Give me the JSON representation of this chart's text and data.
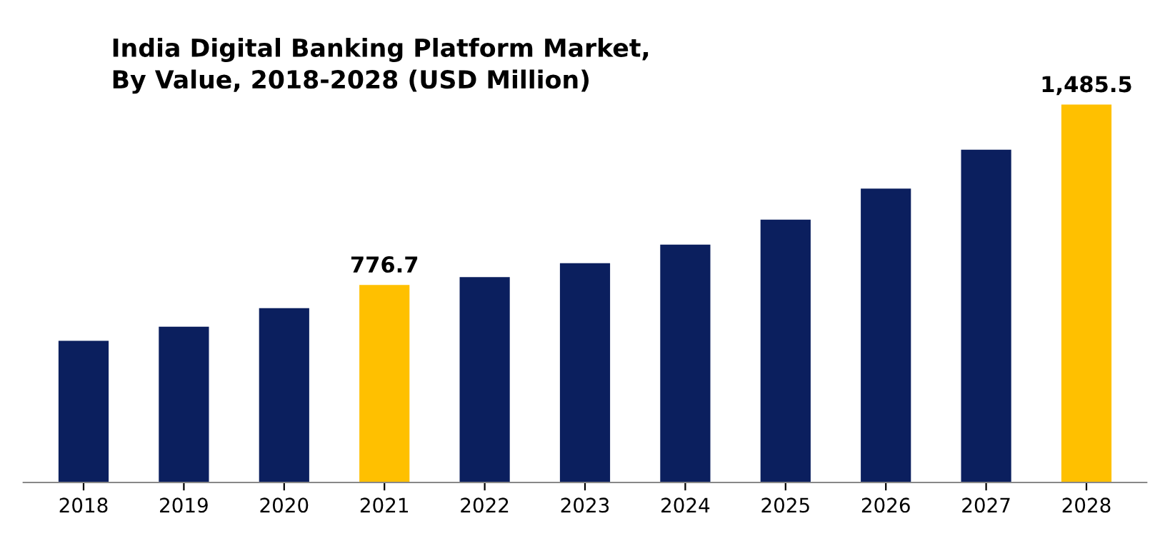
{
  "chart_data": {
    "type": "bar",
    "title": "India Digital Banking Platform Market,\nBy Value, 2018-2028 (USD Million)",
    "categories": [
      "2018",
      "2019",
      "2020",
      "2021",
      "2022",
      "2023",
      "2024",
      "2025",
      "2026",
      "2027",
      "2028"
    ],
    "values": [
      557,
      612,
      685,
      776.7,
      807,
      862,
      935,
      1033,
      1155,
      1308,
      1485.5
    ],
    "colors": [
      "#0b1f5e",
      "#0b1f5e",
      "#0b1f5e",
      "#ffc000",
      "#0b1f5e",
      "#0b1f5e",
      "#0b1f5e",
      "#0b1f5e",
      "#0b1f5e",
      "#0b1f5e",
      "#ffc000"
    ],
    "value_labels": [
      null,
      null,
      null,
      "776.7",
      null,
      null,
      null,
      null,
      null,
      null,
      "1,485.5"
    ],
    "tick_labels": "x",
    "grid": false,
    "legend": false
  }
}
